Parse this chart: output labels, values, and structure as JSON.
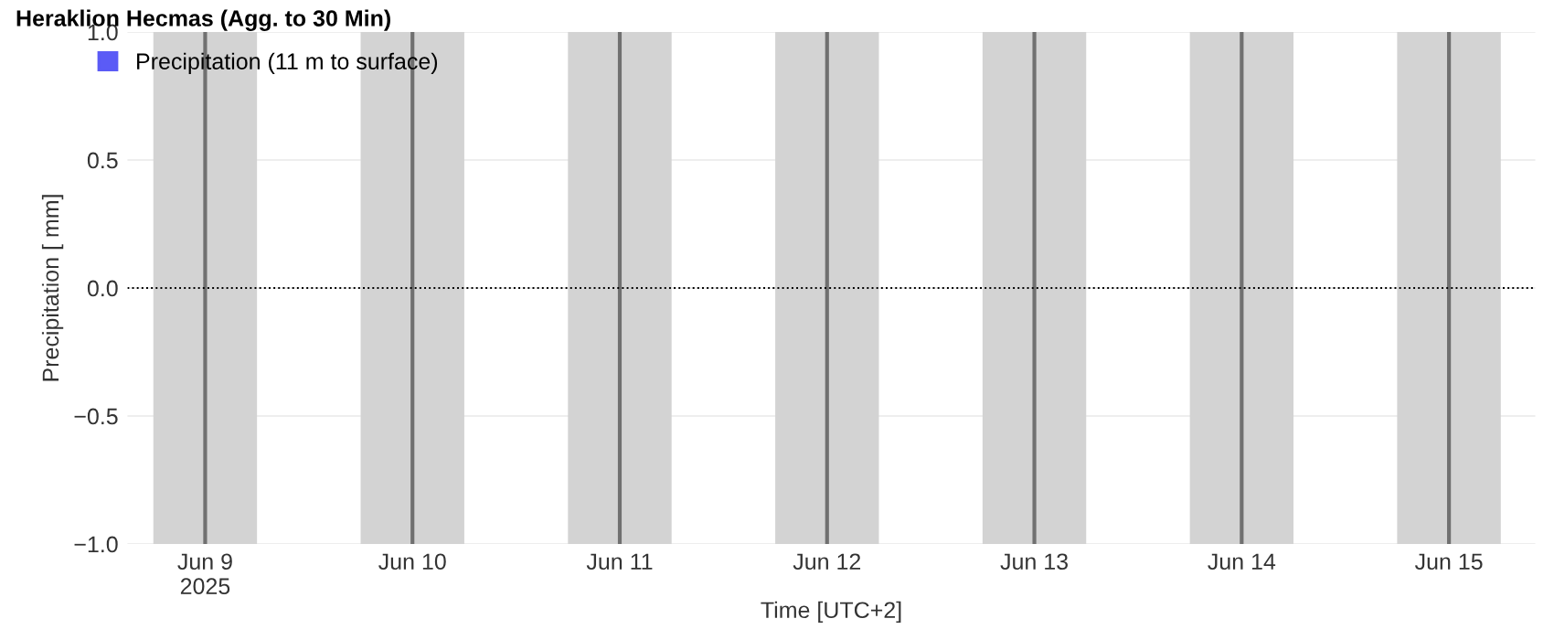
{
  "chart_data": {
    "type": "bar",
    "title": "Heraklion Hecmas (Agg. to 30 Min)",
    "xlabel": "Time [UTC+2]",
    "ylabel": "Precipitation [ mm]",
    "series": [
      {
        "name": "Precipitation (11 m to surface)",
        "color": "#5b5bf6",
        "x": [
          "2025-06-09T00:00",
          "2025-06-10T00:00",
          "2025-06-11T00:00",
          "2025-06-12T00:00",
          "2025-06-13T00:00",
          "2025-06-14T00:00",
          "2025-06-15T00:00"
        ],
        "values": [
          0,
          0,
          0,
          0,
          0,
          0,
          0
        ]
      }
    ],
    "xlim": [
      "2025-06-08T15:00",
      "2025-06-15T10:00"
    ],
    "xticks": [
      {
        "value": "2025-06-09",
        "label": "Jun 9\n2025"
      },
      {
        "value": "2025-06-10",
        "label": "Jun 10"
      },
      {
        "value": "2025-06-11",
        "label": "Jun 11"
      },
      {
        "value": "2025-06-12",
        "label": "Jun 12"
      },
      {
        "value": "2025-06-13",
        "label": "Jun 13"
      },
      {
        "value": "2025-06-14",
        "label": "Jun 14"
      },
      {
        "value": "2025-06-15",
        "label": "Jun 15"
      }
    ],
    "ylim": [
      -1,
      1
    ],
    "yticks": [
      {
        "value": -1,
        "label": "−1.0"
      },
      {
        "value": -0.5,
        "label": "−0.5"
      },
      {
        "value": 0,
        "label": "0.0"
      },
      {
        "value": 0.5,
        "label": "0.5"
      },
      {
        "value": 1,
        "label": "1.0"
      }
    ],
    "grid": "y",
    "legend": "top left",
    "bands": [
      {
        "axis": "x",
        "from": "2025-06-08T18:00",
        "to": "2025-06-09T06:00",
        "color": "#d3d3d3"
      },
      {
        "axis": "x",
        "from": "2025-06-09T18:00",
        "to": "2025-06-10T06:00",
        "color": "#d3d3d3"
      },
      {
        "axis": "x",
        "from": "2025-06-10T18:00",
        "to": "2025-06-11T06:00",
        "color": "#d3d3d3"
      },
      {
        "axis": "x",
        "from": "2025-06-11T18:00",
        "to": "2025-06-12T06:00",
        "color": "#d3d3d3"
      },
      {
        "axis": "x",
        "from": "2025-06-12T18:00",
        "to": "2025-06-13T06:00",
        "color": "#d3d3d3"
      },
      {
        "axis": "x",
        "from": "2025-06-13T18:00",
        "to": "2025-06-14T06:00",
        "color": "#d3d3d3"
      },
      {
        "axis": "x",
        "from": "2025-06-14T18:00",
        "to": "2025-06-15T06:00",
        "color": "#d3d3d3"
      }
    ],
    "ref_lines": [
      {
        "axis": "x",
        "value": "2025-06-09T00:00",
        "color": "#707070",
        "line_style": "solid"
      },
      {
        "axis": "x",
        "value": "2025-06-10T00:00",
        "color": "#707070",
        "line_style": "solid"
      },
      {
        "axis": "x",
        "value": "2025-06-11T00:00",
        "color": "#707070",
        "line_style": "solid"
      },
      {
        "axis": "x",
        "value": "2025-06-12T00:00",
        "color": "#707070",
        "line_style": "solid"
      },
      {
        "axis": "x",
        "value": "2025-06-13T00:00",
        "color": "#707070",
        "line_style": "solid"
      },
      {
        "axis": "x",
        "value": "2025-06-14T00:00",
        "color": "#707070",
        "line_style": "solid"
      },
      {
        "axis": "x",
        "value": "2025-06-15T00:00",
        "color": "#707070",
        "line_style": "solid"
      },
      {
        "axis": "y",
        "value": 0,
        "color": "#000000",
        "line_style": "dotted"
      }
    ]
  }
}
